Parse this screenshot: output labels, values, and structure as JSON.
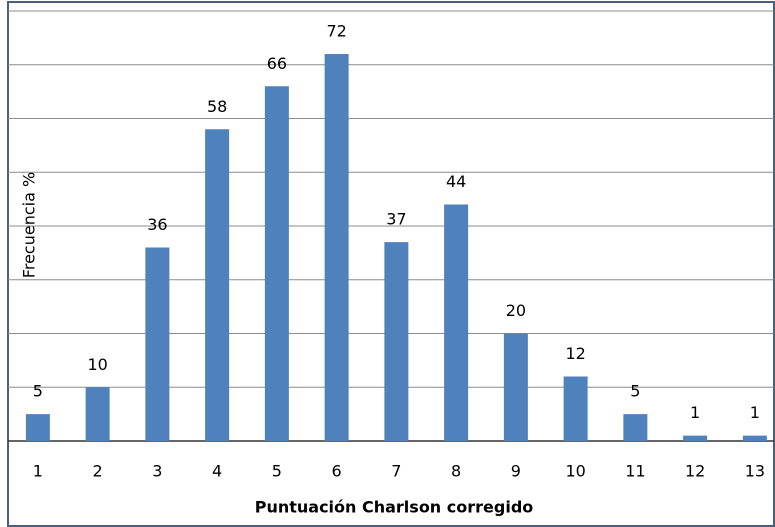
{
  "chart_data": {
    "type": "bar",
    "x_label": "Puntuación Charlson corregido",
    "y_label": "Frecuencia %",
    "categories": [
      "1",
      "2",
      "3",
      "4",
      "5",
      "6",
      "7",
      "8",
      "9",
      "10",
      "11",
      "12",
      "13"
    ],
    "values": [
      5,
      10,
      36,
      58,
      66,
      72,
      37,
      44,
      20,
      12,
      5,
      1,
      1
    ],
    "color": "#4f81bd",
    "ylim": [
      0,
      80
    ],
    "yticks": [
      0,
      10,
      20,
      30,
      40,
      50,
      60,
      70,
      80
    ],
    "grid": true
  }
}
